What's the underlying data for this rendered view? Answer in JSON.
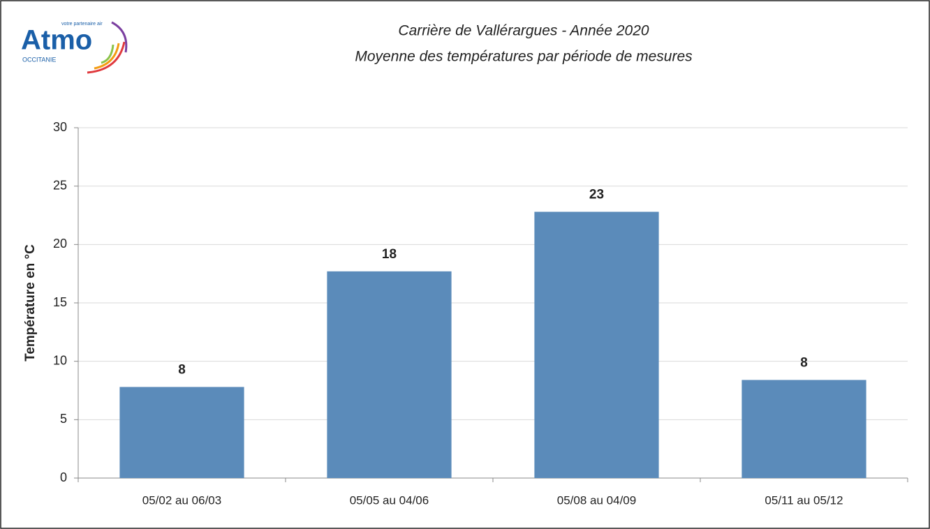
{
  "logo": {
    "name": "Atmo",
    "tagline": "votre partenaire air",
    "region": "OCCITANIE"
  },
  "chart_data": {
    "type": "bar",
    "title": "Carrière de Vallérargues - Année 2020",
    "subtitle": "Moyenne des températures par période de mesures",
    "y_label": "Température en °C",
    "categories": [
      "05/02 au 06/03",
      "05/05 au 04/06",
      "05/08 au 04/09",
      "05/11 au 05/12"
    ],
    "values": [
      7.8,
      17.7,
      22.8,
      8.4
    ],
    "value_labels": [
      "8",
      "18",
      "23",
      "8"
    ],
    "color": "#5b8bba",
    "ylim": [
      0,
      30
    ],
    "yticks": [
      0,
      5,
      10,
      15,
      20,
      25,
      30
    ],
    "grid": true
  }
}
